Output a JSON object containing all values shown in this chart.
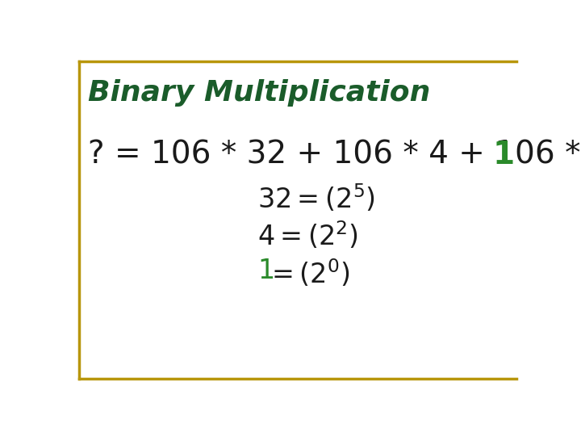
{
  "title": "Binary Multiplication",
  "title_color": "#1a5c2a",
  "title_fontsize": 26,
  "border_color": "#b8960c",
  "background_color": "#ffffff",
  "line1_black": "? = 106 * 32 + 106 * 4 + 106 * ",
  "line1_green": "1",
  "line1_fontsize": 28,
  "sub_fontsize": 24,
  "text_color_black": "#1a1a1a",
  "text_color_green": "#2a8a2a",
  "line2_left": "32 = (2",
  "line2_exp": "5",
  "line2_right": ")",
  "line3_left": "4 = (2",
  "line3_exp": "2",
  "line3_right": ")",
  "line4_green": "1",
  "line4_left": " = (2",
  "line4_exp": "0",
  "line4_right": ")"
}
